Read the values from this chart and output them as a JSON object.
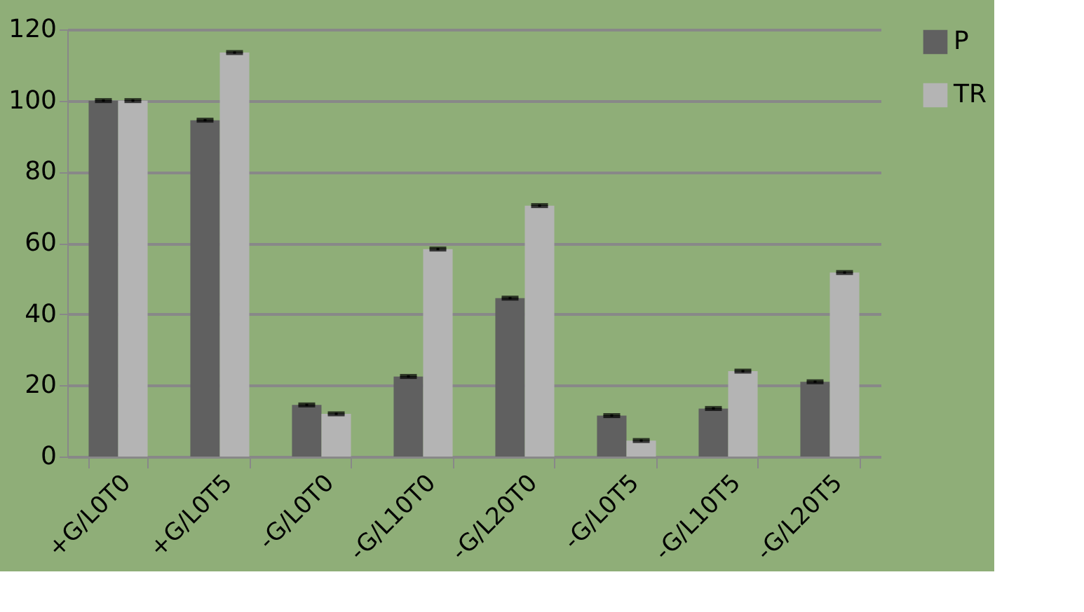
{
  "chart_data": {
    "type": "bar",
    "categories": [
      "+G/L0T0",
      "+G/L0T5",
      "-G/L0T0",
      "-G/L10T0",
      "-G/L20T0",
      "-G/L0T5",
      "-G/L10T5",
      "-G/L20T5"
    ],
    "series": [
      {
        "name": "P",
        "color": "#606060",
        "values": [
          100,
          94.5,
          14.5,
          22.5,
          44.5,
          11.5,
          13.5,
          21
        ],
        "errors": [
          0.3,
          0.3,
          0.3,
          0.3,
          0.3,
          0.3,
          0.3,
          0.3
        ]
      },
      {
        "name": "TR",
        "color": "#b4b4b4",
        "values": [
          100,
          113.5,
          12,
          58.3,
          70.5,
          4.5,
          24,
          51.7
        ],
        "errors": [
          0.3,
          0.3,
          0.3,
          0.3,
          0.3,
          0.3,
          0.3,
          0.3
        ]
      }
    ],
    "ylim": [
      0,
      120
    ],
    "yticks": [
      0,
      20,
      40,
      60,
      80,
      100,
      120
    ],
    "grid": "y",
    "legend": "right"
  }
}
